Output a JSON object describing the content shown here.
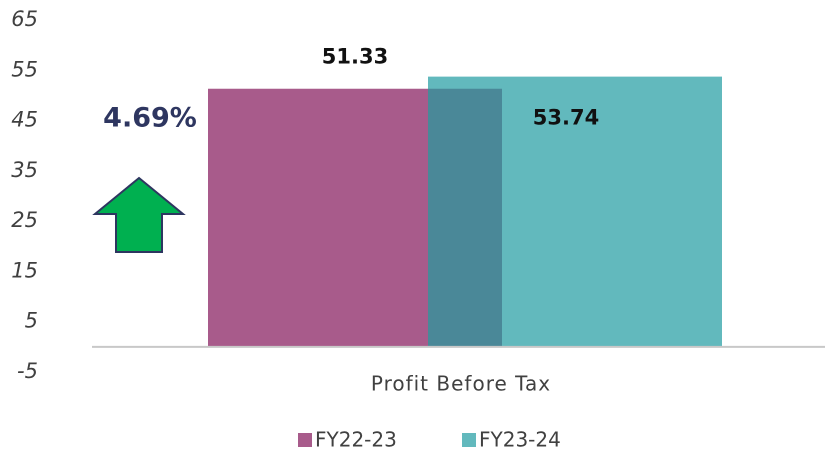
{
  "chart_data": {
    "type": "bar",
    "categories": [
      "Profit Before Tax"
    ],
    "series": [
      {
        "name": "FY22-23",
        "color": "#a85b8b",
        "values": [
          51.33
        ]
      },
      {
        "name": "FY23-24",
        "color": "#62b9bd",
        "values": [
          53.74
        ]
      }
    ],
    "ylim": [
      -5,
      65
    ],
    "yticks": [
      -5,
      5,
      15,
      25,
      35,
      45,
      55,
      65
    ],
    "annotation": "4.69%",
    "overlap_color": "#4a8898",
    "grid": false
  }
}
